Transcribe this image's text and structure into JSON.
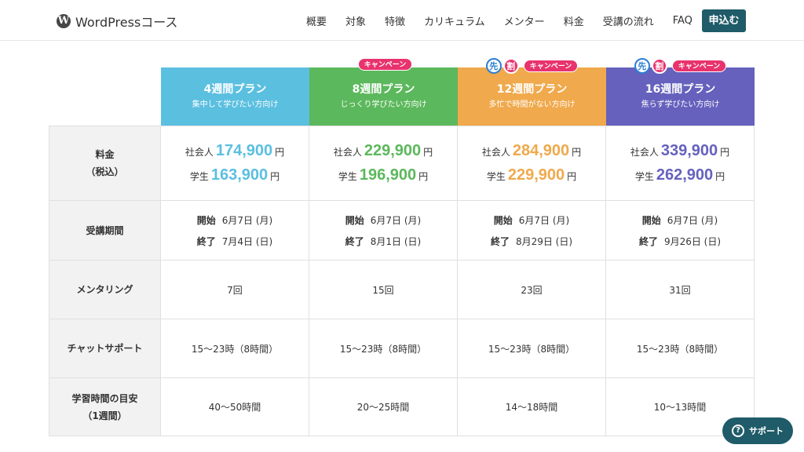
{
  "header": {
    "logo_glyph": "W",
    "logo_text": "WordPressコース",
    "nav": [
      "概要",
      "対象",
      "特徴",
      "カリキュラム",
      "メンター",
      "料金",
      "受講の流れ",
      "FAQ"
    ],
    "apply_label": "申込む"
  },
  "plans": [
    {
      "name": "4週間プラン",
      "sub": "集中して学びたい方向け",
      "color": "#5bbfe0",
      "campaign": false,
      "early": false,
      "price_adult": "174,900",
      "price_student": "163,900",
      "start": "6月7日 (月)",
      "end": "7月4日 (日)",
      "mentoring": "7回",
      "chat": "15〜23時（8時間）",
      "study": "40〜50時間"
    },
    {
      "name": "8週間プラン",
      "sub": "じっくり学びたい方向け",
      "color": "#5cb85c",
      "campaign": true,
      "early": false,
      "price_adult": "229,900",
      "price_student": "196,900",
      "start": "6月7日 (月)",
      "end": "8月1日 (日)",
      "mentoring": "15回",
      "chat": "15〜23時（8時間）",
      "study": "20〜25時間"
    },
    {
      "name": "12週間プラン",
      "sub": "多忙で時間がない方向け",
      "color": "#f0a94c",
      "campaign": true,
      "early": true,
      "price_adult": "284,900",
      "price_student": "229,900",
      "start": "6月7日 (月)",
      "end": "8月29日 (日)",
      "mentoring": "23回",
      "chat": "15〜23時（8時間）",
      "study": "14〜18時間"
    },
    {
      "name": "16週間プラン",
      "sub": "焦らず学びたい方向け",
      "color": "#6561bd",
      "campaign": true,
      "early": true,
      "price_adult": "339,900",
      "price_student": "262,900",
      "start": "6月7日 (月)",
      "end": "9月26日 (日)",
      "mentoring": "31回",
      "chat": "15〜23時（8時間）",
      "study": "10〜13時間"
    }
  ],
  "badges": {
    "campaign": "キャンペーン",
    "saki": "先",
    "wari": "割"
  },
  "labels": {
    "price_1": "料金",
    "price_2": "（税込）",
    "period": "受講期間",
    "mentoring": "メンタリング",
    "chat": "チャットサポート",
    "study_1": "学習時間の目安",
    "study_2": "（1週間）",
    "adult": "社会人",
    "student": "学生",
    "yen": "円",
    "start": "開始",
    "end": "終了"
  },
  "support": {
    "label": "サポート",
    "icon": "help-icon",
    "glyph": "?"
  }
}
